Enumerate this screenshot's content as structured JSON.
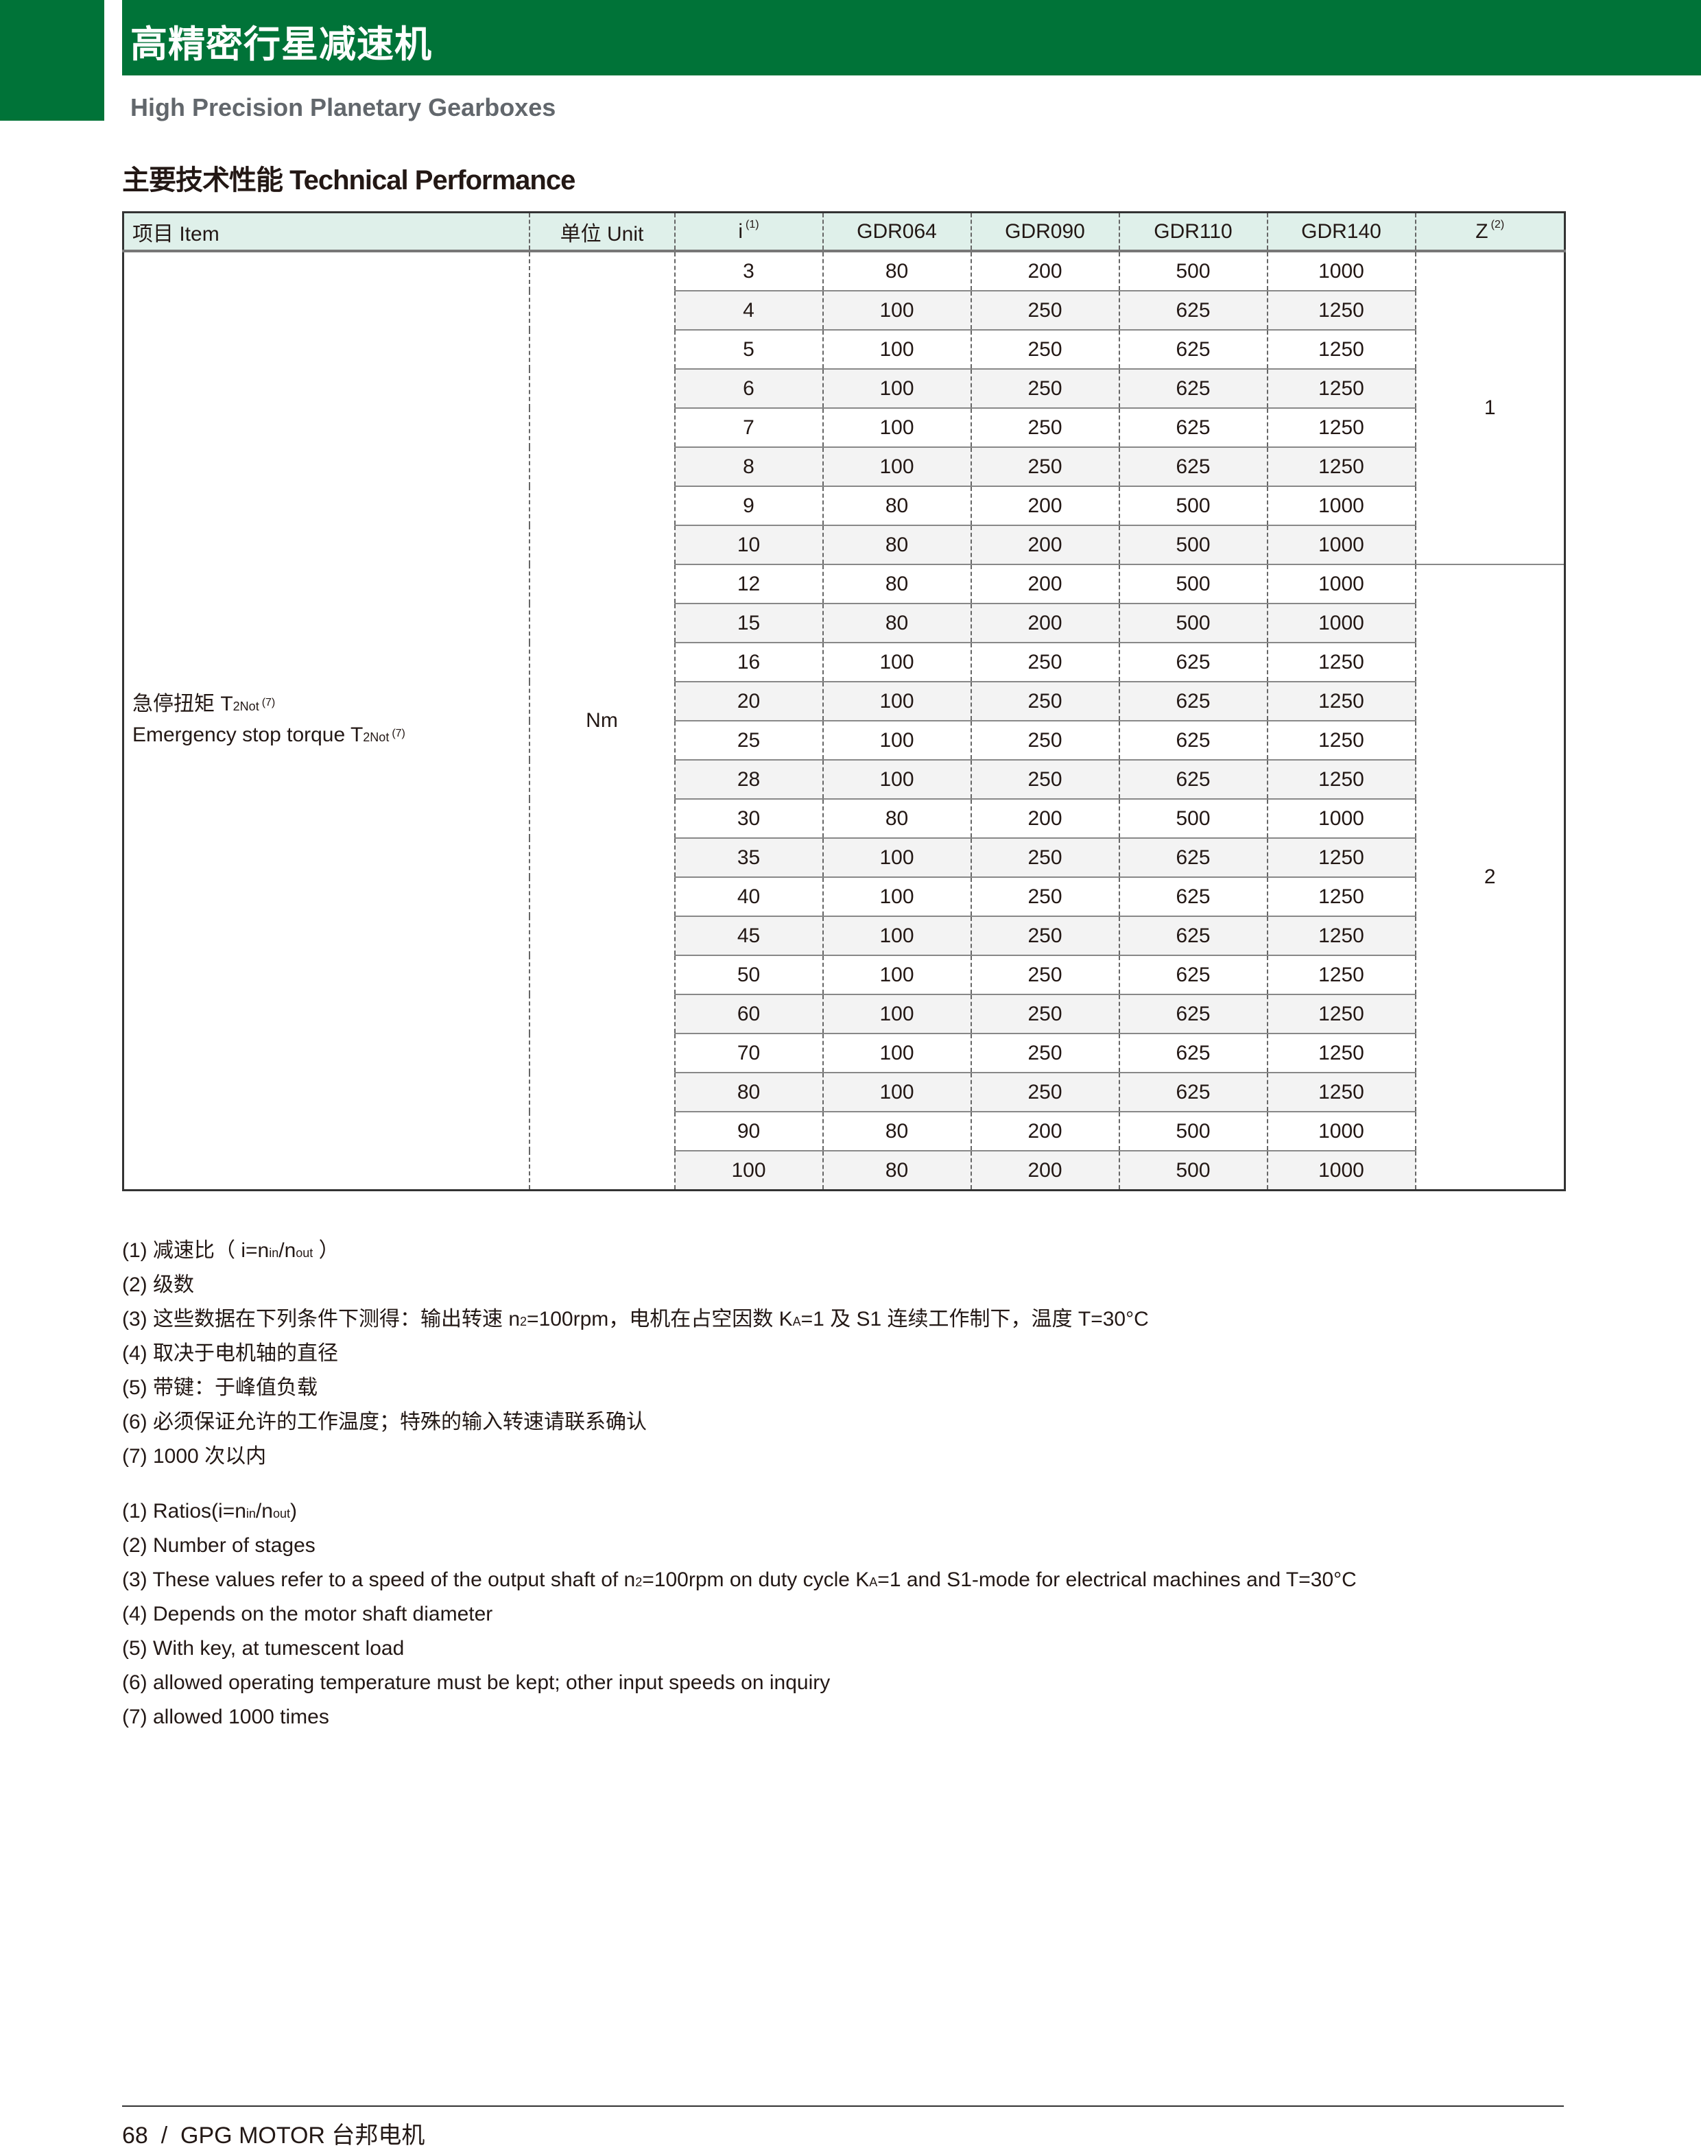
{
  "header": {
    "title_cn": "高精密行星减速机",
    "subtitle_en": "High Precision Planetary Gearboxes",
    "brand_color": "#007338"
  },
  "section_title": "主要技术性能 Technical Performance",
  "table": {
    "columns": [
      {
        "label": "项目 Item",
        "sup": ""
      },
      {
        "label": "单位 Unit",
        "sup": ""
      },
      {
        "label": "i",
        "sup": "(1)"
      },
      {
        "label": "GDR064",
        "sup": ""
      },
      {
        "label": "GDR090",
        "sup": ""
      },
      {
        "label": "GDR110",
        "sup": ""
      },
      {
        "label": "GDR140",
        "sup": ""
      },
      {
        "label": "Z",
        "sup": "(2)"
      }
    ],
    "item": {
      "cn": "急停扭矩 T",
      "cn_sub": "2Not",
      "cn_sup": "(7)",
      "en": "Emergency stop torque T",
      "en_sub": "2Not",
      "en_sup": "(7)"
    },
    "unit": "Nm",
    "stages": [
      {
        "z": "1",
        "rows": [
          [
            "3",
            "80",
            "200",
            "500",
            "1000"
          ],
          [
            "4",
            "100",
            "250",
            "625",
            "1250"
          ],
          [
            "5",
            "100",
            "250",
            "625",
            "1250"
          ],
          [
            "6",
            "100",
            "250",
            "625",
            "1250"
          ],
          [
            "7",
            "100",
            "250",
            "625",
            "1250"
          ],
          [
            "8",
            "100",
            "250",
            "625",
            "1250"
          ],
          [
            "9",
            "80",
            "200",
            "500",
            "1000"
          ],
          [
            "10",
            "80",
            "200",
            "500",
            "1000"
          ]
        ]
      },
      {
        "z": "2",
        "rows": [
          [
            "12",
            "80",
            "200",
            "500",
            "1000"
          ],
          [
            "15",
            "80",
            "200",
            "500",
            "1000"
          ],
          [
            "16",
            "100",
            "250",
            "625",
            "1250"
          ],
          [
            "20",
            "100",
            "250",
            "625",
            "1250"
          ],
          [
            "25",
            "100",
            "250",
            "625",
            "1250"
          ],
          [
            "28",
            "100",
            "250",
            "625",
            "1250"
          ],
          [
            "30",
            "80",
            "200",
            "500",
            "1000"
          ],
          [
            "35",
            "100",
            "250",
            "625",
            "1250"
          ],
          [
            "40",
            "100",
            "250",
            "625",
            "1250"
          ],
          [
            "45",
            "100",
            "250",
            "625",
            "1250"
          ],
          [
            "50",
            "100",
            "250",
            "625",
            "1250"
          ],
          [
            "60",
            "100",
            "250",
            "625",
            "1250"
          ],
          [
            "70",
            "100",
            "250",
            "625",
            "1250"
          ],
          [
            "80",
            "100",
            "250",
            "625",
            "1250"
          ],
          [
            "90",
            "80",
            "200",
            "500",
            "1000"
          ],
          [
            "100",
            "80",
            "200",
            "500",
            "1000"
          ]
        ]
      }
    ]
  },
  "notes_cn": [
    [
      {
        "t": "(1) 减速比（ i=n"
      },
      {
        "sub": "in"
      },
      {
        "t": "/n"
      },
      {
        "sub": "out"
      },
      {
        "t": " ）"
      }
    ],
    [
      {
        "t": "(2) 级数"
      }
    ],
    [
      {
        "t": "(3) 这些数据在下列条件下测得：输出转速 n"
      },
      {
        "sub": "2"
      },
      {
        "t": "=100rpm，电机在占空因数 K"
      },
      {
        "sub": "A"
      },
      {
        "t": "=1 及 S1 连续工作制下，温度 T=30°C"
      }
    ],
    [
      {
        "t": "(4) 取决于电机轴的直径"
      }
    ],
    [
      {
        "t": "(5) 带键：于峰值负载"
      }
    ],
    [
      {
        "t": "(6) 必须保证允许的工作温度；特殊的输入转速请联系确认"
      }
    ],
    [
      {
        "t": "(7) 1000 次以内"
      }
    ]
  ],
  "notes_en": [
    [
      {
        "t": "(1) Ratios(i=n"
      },
      {
        "sub": "in"
      },
      {
        "t": "/n"
      },
      {
        "sub": "out"
      },
      {
        "t": ")"
      }
    ],
    [
      {
        "t": "(2) Number of stages"
      }
    ],
    [
      {
        "t": "(3) These values refer to a speed of the output shaft of n"
      },
      {
        "sub": "2"
      },
      {
        "t": "=100rpm on duty cycle K"
      },
      {
        "sub": "A"
      },
      {
        "t": "=1 and S1-mode for electrical machines and T=30°C"
      }
    ],
    [
      {
        "t": "(4) Depends on the motor shaft diameter"
      }
    ],
    [
      {
        "t": "(5) With key, at tumescent load"
      }
    ],
    [
      {
        "t": "(6) allowed operating temperature must be kept; other input speeds on inquiry"
      }
    ],
    [
      {
        "t": "(7) allowed 1000 times"
      }
    ]
  ],
  "footer": "68  /  GPG MOTOR 台邦电机"
}
